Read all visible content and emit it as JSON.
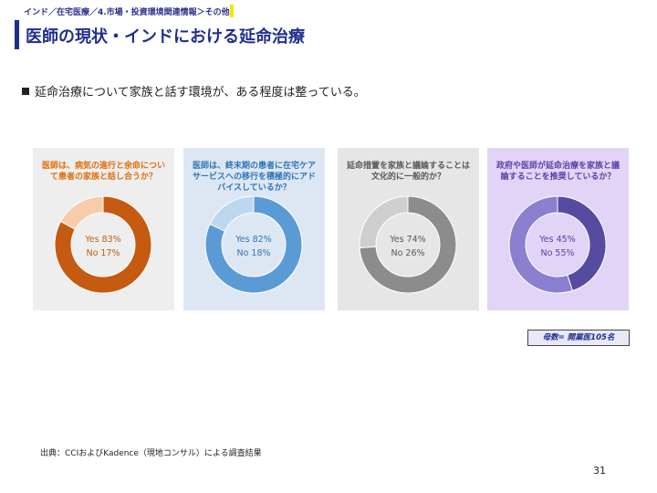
{
  "header": {
    "breadcrumb": "インド／在宅医療／4.市場・投資環境関連情報＞その他",
    "title": "医師の現状・インドにおける延命治療"
  },
  "statement": "延命治療について家族と話す環境が、ある程度は整っている。",
  "panels": [
    {
      "question": "医師は、病気の進行と余命について患者の家族と話し合うか？",
      "yes_label": "Yes 83%",
      "no_label": "No 17%",
      "yes_fraction": 0.83,
      "colors": {
        "background": "#eeeeee",
        "question": "#e36c09",
        "yes": "#c55a11",
        "no": "#f8cbad",
        "text": "#c55a11"
      }
    },
    {
      "question": "医師は、終末期の患者に在宅ケアサービスへの移行を積極的にアドバイスしているか？",
      "yes_label": "Yes 82%",
      "no_label": "No 18%",
      "yes_fraction": 0.82,
      "colors": {
        "background": "#dde7f4",
        "question": "#2e75b6",
        "yes": "#5b9bd5",
        "no": "#bdd7ee",
        "text": "#2e75b6"
      }
    },
    {
      "question": "延命措置を家族と議論することは文化的に一般的か？",
      "yes_label": "Yes 74%",
      "no_label": "No 26%",
      "yes_fraction": 0.74,
      "colors": {
        "background": "#e7e6e6",
        "question": "#595959",
        "yes": "#8c8c8c",
        "no": "#d0cece",
        "text": "#595959"
      }
    },
    {
      "question": "政府や医師が延命治療を家族と議論することを推奨しているか？",
      "yes_label": "Yes 45%",
      "no_label": "No 55%",
      "yes_fraction": 0.45,
      "colors": {
        "background": "#e2d4f6",
        "question": "#5b3fa8",
        "yes": "#574ba0",
        "no": "#8c7fcf",
        "text": "#5b3fa8"
      }
    }
  ],
  "note": "母数= 開業医105名",
  "source": "出典：CCIおよびKadence（現地コンサル）による調査結果",
  "page_number": "31"
}
